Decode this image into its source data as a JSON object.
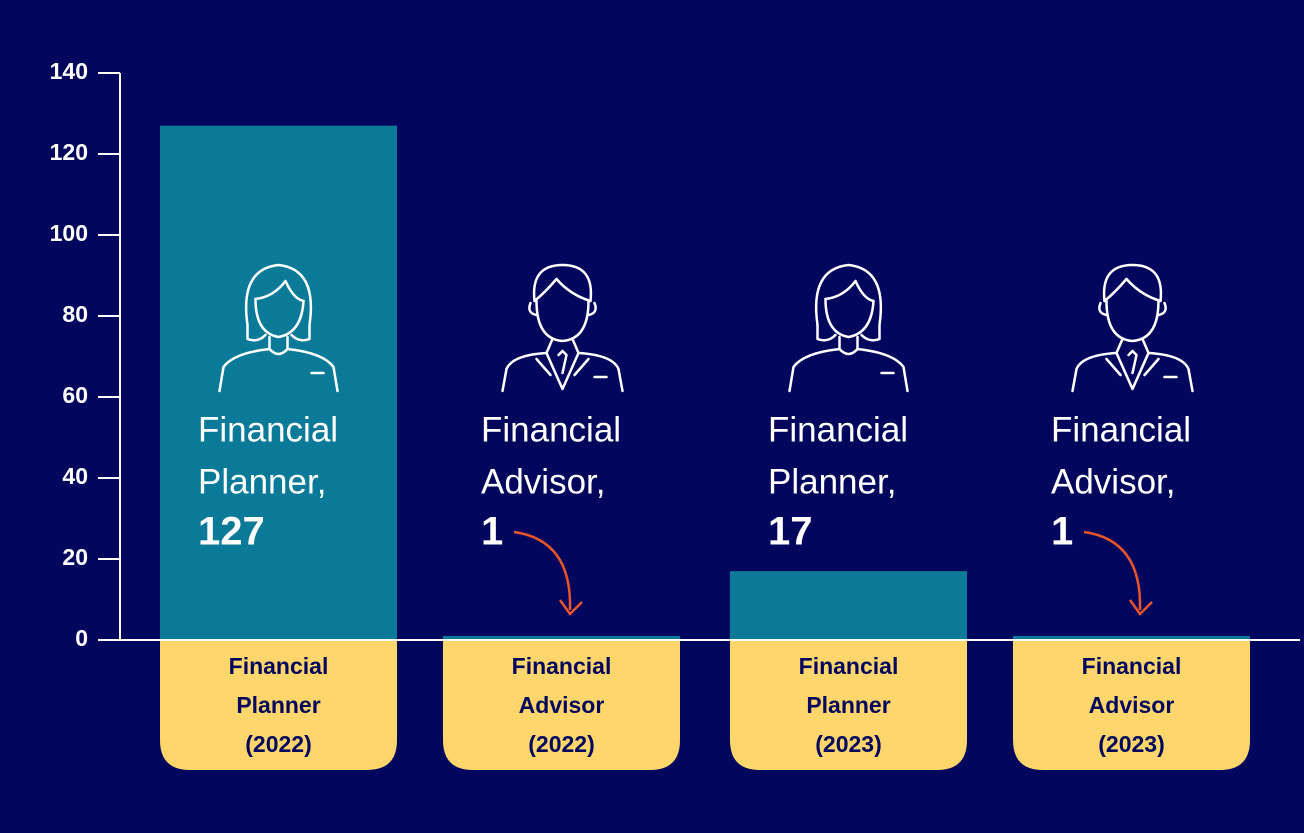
{
  "chart_data": {
    "type": "bar",
    "categories": [
      [
        "Financial",
        "Planner",
        "(2022)"
      ],
      [
        "Financial",
        "Advisor",
        "(2022)"
      ],
      [
        "Financial",
        "Planner",
        "(2023)"
      ],
      [
        "Financial",
        "Advisor",
        "(2023)"
      ]
    ],
    "bar_labels": [
      [
        "Financial",
        "Planner,"
      ],
      [
        "Financial",
        "Advisor,"
      ],
      [
        "Financial",
        "Planner,"
      ],
      [
        "Financial",
        "Advisor,"
      ]
    ],
    "values": [
      127,
      1,
      17,
      1
    ],
    "color": "#0b7a98",
    "ylim": [
      0,
      140
    ],
    "yticks": [
      0,
      20,
      40,
      60,
      80,
      100,
      120,
      140
    ]
  }
}
